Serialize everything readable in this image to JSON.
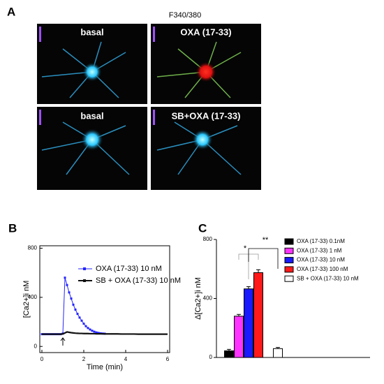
{
  "figure": {
    "panel_labels": [
      "A",
      "B",
      "C"
    ],
    "images": {
      "title": "F340/380",
      "labels": [
        "basal",
        "OXA (17-33)",
        "basal",
        "SB+OXA (17-33)"
      ]
    }
  },
  "chart_data": [
    {
      "type": "line",
      "x": [
        0,
        0.1,
        0.2,
        0.3,
        0.4,
        0.5,
        0.6,
        0.7,
        0.8,
        0.9,
        1.0,
        1.1,
        1.2,
        1.3,
        1.4,
        1.5,
        1.6,
        1.7,
        1.8,
        1.9,
        2.0,
        2.1,
        2.2,
        2.3,
        2.4,
        2.5,
        2.6,
        2.7,
        2.8,
        2.9,
        3.0,
        3.2,
        3.4,
        3.6,
        3.8,
        4.0,
        4.2,
        4.4,
        4.6,
        4.8,
        5.0,
        5.2,
        5.4,
        5.6,
        5.8,
        6.0
      ],
      "series": [
        {
          "name": "OXA (17-33) 10 nM",
          "color": "#2424ff",
          "values": [
            100,
            100,
            100,
            100,
            100,
            100,
            100,
            100,
            100,
            100,
            105,
            560,
            500,
            440,
            390,
            340,
            300,
            265,
            235,
            210,
            185,
            165,
            150,
            138,
            128,
            120,
            114,
            110,
            107,
            105,
            104,
            103,
            102,
            102,
            101,
            101,
            100,
            100,
            100,
            100,
            100,
            100,
            100,
            100,
            100,
            100
          ]
        },
        {
          "name": "SB + OXA (17-33) 10 nM",
          "color": "#111111",
          "values": [
            100,
            100,
            100,
            100,
            100,
            100,
            100,
            100,
            100,
            100,
            102,
            110,
            118,
            115,
            112,
            110,
            108,
            107,
            106,
            106,
            105,
            105,
            105,
            104,
            104,
            104,
            103,
            103,
            103,
            103,
            102,
            102,
            102,
            102,
            101,
            101,
            101,
            101,
            100,
            100,
            100,
            100,
            100,
            100,
            100,
            100
          ]
        }
      ],
      "xlabel": "Time (min)",
      "ylabel": "[Ca2+]i nM",
      "xlim": [
        -0.1,
        6.1
      ],
      "xticks": [
        0,
        2,
        4,
        6
      ],
      "ylim": [
        -50,
        820
      ],
      "yticks": [
        0,
        400,
        800
      ]
    },
    {
      "type": "bar",
      "categories": [
        "OXA (17-33) 0.1nM",
        "OXA (17-33) 1 nM",
        "OXA (17-33) 10 nM",
        "OXA (17-33) 100 nM",
        "SB + OXA (17-33) 10 nM"
      ],
      "values": [
        45,
        280,
        465,
        575,
        60
      ],
      "errors": [
        10,
        12,
        15,
        20,
        8
      ],
      "colors": [
        "#000000",
        "#ff33ff",
        "#1a1aff",
        "#ff1a1a",
        "#ffffff"
      ],
      "ylabel": "Δ[Ca2+]i nM",
      "ylim": [
        0,
        800
      ],
      "yticks": [
        0,
        400,
        800
      ],
      "annotations": [
        "*",
        "**"
      ]
    }
  ]
}
